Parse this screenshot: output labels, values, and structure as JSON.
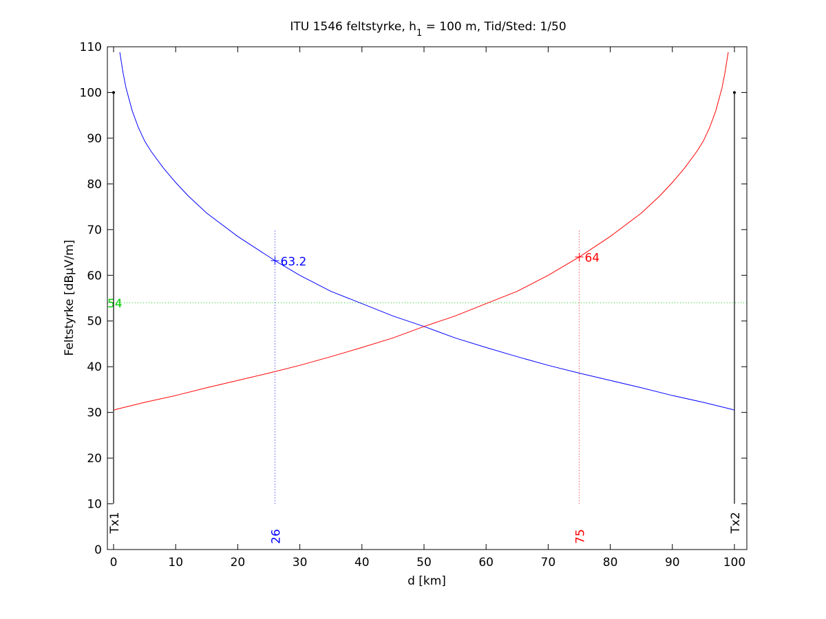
{
  "chart_data": {
    "type": "line",
    "title": {
      "prefix": "ITU 1546 feltstyrke, h",
      "subscript": "1",
      "suffix": " = 100 m, Tid/Sted: 1/50"
    },
    "xlabel": "d [km]",
    "ylabel": "Feltstyrke [dBµV/m]",
    "xlim": [
      -1,
      102
    ],
    "ylim": [
      0,
      110
    ],
    "xticks": [
      0,
      10,
      20,
      30,
      40,
      50,
      60,
      70,
      80,
      90,
      100
    ],
    "yticks": [
      0,
      10,
      20,
      30,
      40,
      50,
      60,
      70,
      80,
      90,
      100,
      110
    ],
    "grid": false,
    "colors": {
      "tx1": "#0000ff",
      "tx2": "#ff0000",
      "threshold": "#00cc00",
      "marker": "#000000"
    },
    "series": [
      {
        "color": "#0000ff",
        "x": [
          1,
          1.5,
          2,
          3,
          4,
          5,
          6,
          8,
          10,
          12,
          15,
          20,
          26,
          30,
          35,
          40,
          45,
          50,
          55,
          60,
          65,
          70,
          75,
          80,
          85,
          90,
          95,
          98,
          99.5,
          100
        ],
        "y": [
          108.8,
          104.5,
          101,
          96,
          92.3,
          89.4,
          87.2,
          83.5,
          80.3,
          77.4,
          73.6,
          68.5,
          63.2,
          60,
          56.5,
          53.8,
          51.1,
          48.8,
          46.3,
          44.2,
          42.2,
          40.3,
          38.6,
          37,
          35.4,
          33.7,
          32.2,
          31.2,
          30.7,
          30.5
        ]
      },
      {
        "color": "#ff0000",
        "x": [
          0,
          0.5,
          2,
          5,
          10,
          15,
          20,
          25,
          30,
          35,
          40,
          45,
          50,
          55,
          60,
          65,
          70,
          75,
          80,
          85,
          88,
          90,
          92,
          94,
          95,
          96,
          97,
          98,
          98.5,
          99
        ],
        "y": [
          30.5,
          30.7,
          31.2,
          32.2,
          33.7,
          35.4,
          37,
          38.6,
          40.3,
          42.2,
          44.2,
          46.3,
          48.8,
          51.1,
          53.8,
          56.5,
          60,
          64,
          68.5,
          73.6,
          77.4,
          80.3,
          83.5,
          87.2,
          89.4,
          92.3,
          96,
          101,
          104.5,
          108.8
        ]
      }
    ],
    "transmitters": [
      {
        "label": "Tx1",
        "x": 0,
        "y_from": 10,
        "y_to": 100,
        "color": "#000000"
      },
      {
        "label": "Tx2",
        "x": 100,
        "y_from": 10,
        "y_to": 100,
        "color": "#000000"
      }
    ],
    "vertical_markers": [
      {
        "x": 26,
        "y_from": 10,
        "y_to": 70,
        "label": "26",
        "color": "#0000ff"
      },
      {
        "x": 75,
        "y_from": 10,
        "y_to": 70,
        "label": "75",
        "color": "#ff0000"
      }
    ],
    "threshold": {
      "y": 54,
      "label": "54",
      "color": "#00cc00"
    },
    "point_labels": [
      {
        "x": 26,
        "y": 63.2,
        "label": "63.2",
        "color": "#0000ff"
      },
      {
        "x": 75,
        "y": 64,
        "label": "64",
        "color": "#ff0000"
      }
    ]
  }
}
